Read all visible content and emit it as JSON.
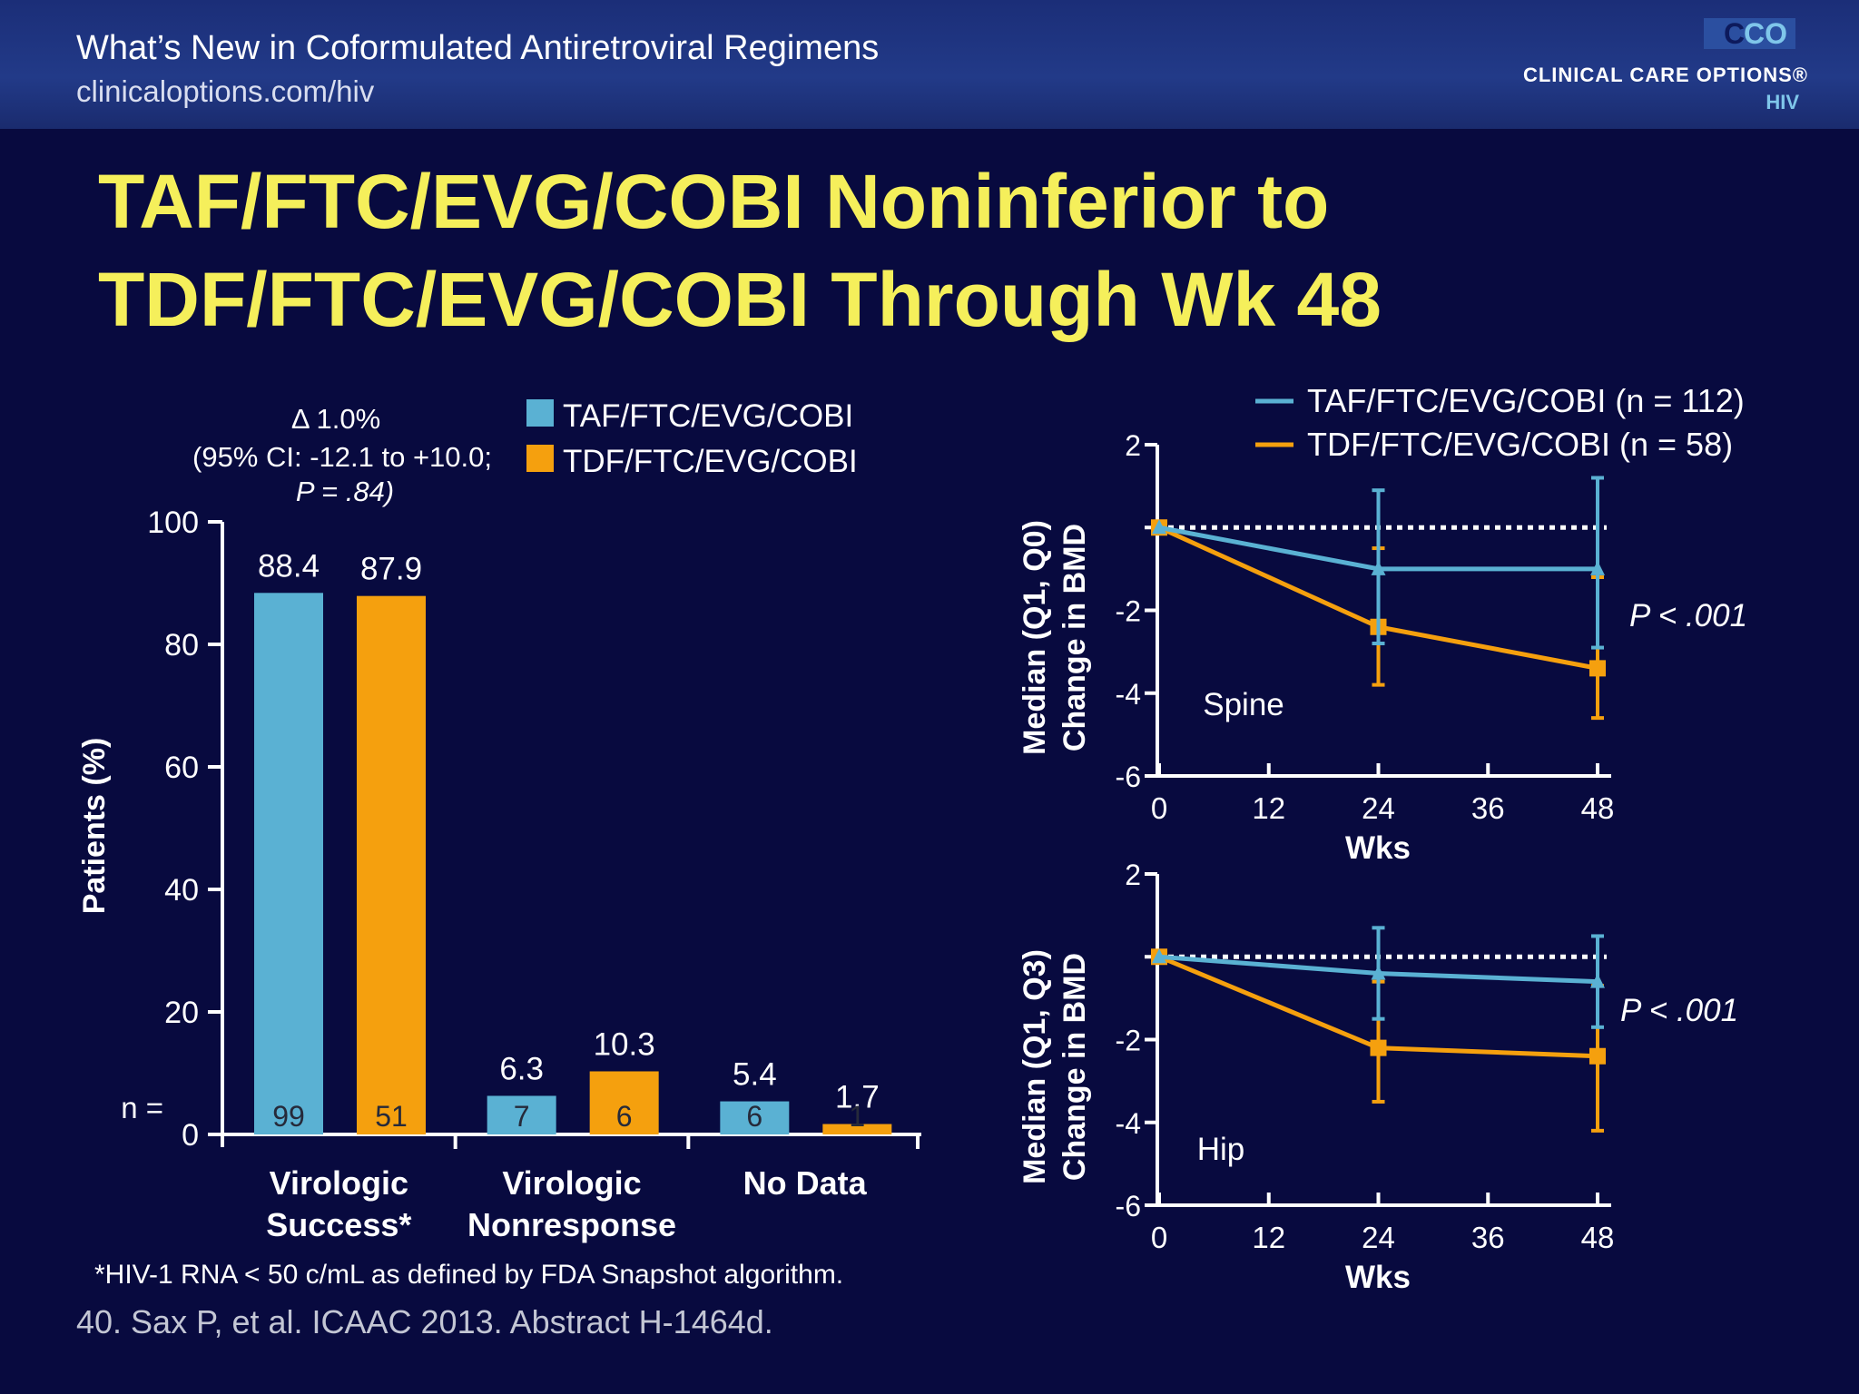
{
  "header": {
    "title": "What’s New in Coformulated Antiretroviral Regimens",
    "url": "clinicaloptions.com/hiv",
    "logo": {
      "mark_left": "C",
      "mark_right": "CO",
      "name": "CLINICAL CARE OPTIONS®",
      "sub": "HIV"
    }
  },
  "slide": {
    "title_line1": "TAF/FTC/EVG/COBI Noninferior to",
    "title_line2": "TDF/FTC/EVG/COBI Through Wk 48",
    "footnote": "*HIV-1 RNA < 50 c/mL as defined by FDA Snapshot algorithm.",
    "reference": "40. Sax P, et al. ICAAC 2013. Abstract H-1464d."
  },
  "colors": {
    "taf": "#5ab1d3",
    "tdf": "#f5a00e",
    "title": "#f5ef5b",
    "background": "#080a3f"
  },
  "chart_data": [
    {
      "type": "bar",
      "ylabel": "Patients (%)",
      "ylim": [
        0,
        100
      ],
      "yticks": [
        "0",
        "20",
        "40",
        "60",
        "80",
        "100"
      ],
      "n_label": "n =",
      "annotation": {
        "line1": "Δ 1.0%",
        "line2": "(95% CI: -12.1 to +10.0;",
        "line3": "P = .84)"
      },
      "legend": [
        "TAF/FTC/EVG/COBI",
        "TDF/FTC/EVG/COBI"
      ],
      "categories": [
        {
          "line1": "Virologic",
          "line2": "Success*"
        },
        {
          "line1": "Virologic",
          "line2": "Nonresponse"
        },
        {
          "line1": "No Data",
          "line2": ""
        }
      ],
      "series": [
        {
          "name": "TAF/FTC/EVG/COBI",
          "values": [
            88.4,
            6.3,
            5.4
          ],
          "labels": [
            "88.4",
            "6.3",
            "5.4"
          ],
          "n": [
            "99",
            "7",
            "6"
          ]
        },
        {
          "name": "TDF/FTC/EVG/COBI",
          "values": [
            87.9,
            10.3,
            1.7
          ],
          "labels": [
            "87.9",
            "10.3",
            "1.7"
          ],
          "n": [
            "51",
            "6",
            "1"
          ]
        }
      ]
    },
    {
      "type": "line",
      "panel_label": "Spine",
      "ylabel_line1": "Median (Q1, Q0)",
      "ylabel_line2": "Change in BMD",
      "xlabel": "Wks",
      "x": [
        0,
        24,
        48
      ],
      "xticks": [
        "0",
        "12",
        "24",
        "36",
        "48"
      ],
      "yticks": [
        "-6",
        "-4",
        "-2",
        "2"
      ],
      "ylim": [
        -6,
        2
      ],
      "p_value": "P < .001",
      "legend": [
        "TAF/FTC/EVG/COBI (n = 112)",
        "TDF/FTC/EVG/COBI (n = 58)"
      ],
      "series": [
        {
          "name": "TAF/FTC/EVG/COBI (n = 112)",
          "values": [
            0,
            -1.0,
            -1.0
          ],
          "low": [
            0,
            -2.8,
            -2.9
          ],
          "high": [
            0,
            0.9,
            1.2
          ]
        },
        {
          "name": "TDF/FTC/EVG/COBI (n = 58)",
          "values": [
            0,
            -2.4,
            -3.4
          ],
          "low": [
            0,
            -3.8,
            -4.6
          ],
          "high": [
            0,
            -0.5,
            -1.2
          ]
        }
      ]
    },
    {
      "type": "line",
      "panel_label": "Hip",
      "ylabel_line1": "Median (Q1, Q3)",
      "ylabel_line2": "Change in BMD",
      "xlabel": "Wks",
      "x": [
        0,
        24,
        48
      ],
      "xticks": [
        "0",
        "12",
        "24",
        "36",
        "48"
      ],
      "yticks": [
        "-6",
        "-4",
        "-2",
        "2"
      ],
      "ylim": [
        -6,
        2
      ],
      "p_value": "P < .001",
      "series": [
        {
          "name": "TAF/FTC/EVG/COBI (n = 112)",
          "values": [
            0,
            -0.4,
            -0.6
          ],
          "low": [
            0,
            -1.5,
            -1.7
          ],
          "high": [
            0,
            0.7,
            0.5
          ]
        },
        {
          "name": "TDF/FTC/EVG/COBI (n = 58)",
          "values": [
            0,
            -2.2,
            -2.4
          ],
          "low": [
            0,
            -3.5,
            -4.2
          ],
          "high": [
            0,
            -0.6,
            -0.7
          ]
        }
      ]
    }
  ]
}
